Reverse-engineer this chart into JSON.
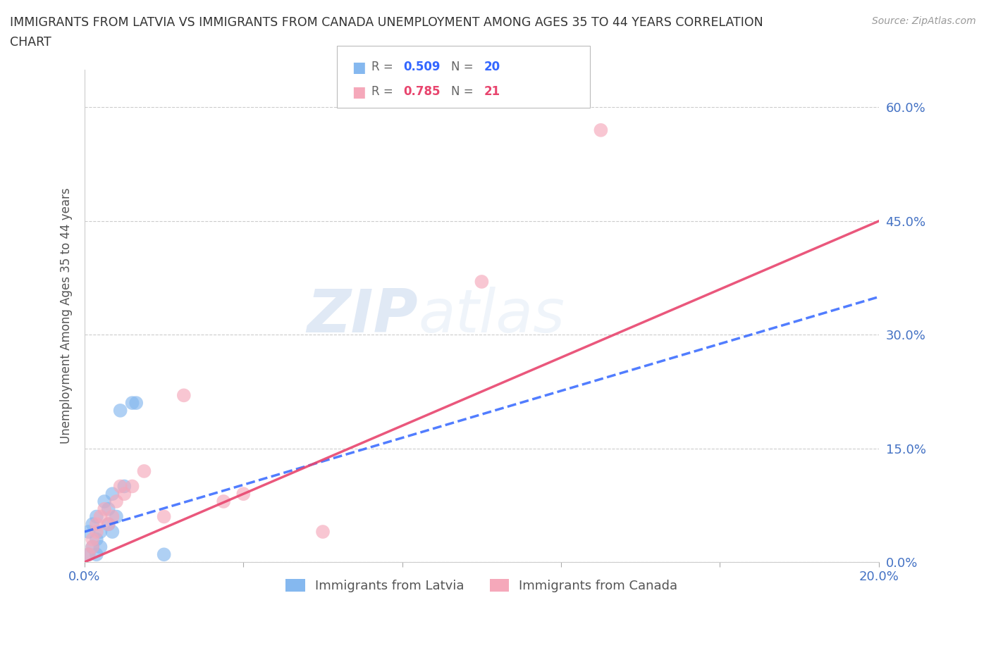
{
  "title": "IMMIGRANTS FROM LATVIA VS IMMIGRANTS FROM CANADA UNEMPLOYMENT AMONG AGES 35 TO 44 YEARS CORRELATION\nCHART",
  "source": "Source: ZipAtlas.com",
  "ylabel": "Unemployment Among Ages 35 to 44 years",
  "xlim": [
    0.0,
    0.2
  ],
  "ylim": [
    0.0,
    0.65
  ],
  "yticks": [
    0.0,
    0.15,
    0.3,
    0.45,
    0.6
  ],
  "ytick_labels": [
    "0.0%",
    "15.0%",
    "30.0%",
    "45.0%",
    "60.0%"
  ],
  "xticks": [
    0.0,
    0.04,
    0.08,
    0.12,
    0.16,
    0.2
  ],
  "xtick_labels": [
    "0.0%",
    "",
    "",
    "",
    "",
    "20.0%"
  ],
  "latvia_x": [
    0.001,
    0.001,
    0.002,
    0.002,
    0.003,
    0.003,
    0.003,
    0.004,
    0.004,
    0.005,
    0.006,
    0.006,
    0.007,
    0.007,
    0.008,
    0.009,
    0.01,
    0.012,
    0.013,
    0.02
  ],
  "latvia_y": [
    0.01,
    0.04,
    0.02,
    0.05,
    0.01,
    0.03,
    0.06,
    0.02,
    0.04,
    0.08,
    0.05,
    0.07,
    0.04,
    0.09,
    0.06,
    0.2,
    0.1,
    0.21,
    0.21,
    0.01
  ],
  "canada_x": [
    0.001,
    0.002,
    0.002,
    0.003,
    0.003,
    0.004,
    0.005,
    0.006,
    0.007,
    0.008,
    0.009,
    0.01,
    0.012,
    0.015,
    0.02,
    0.025,
    0.035,
    0.04,
    0.06,
    0.1,
    0.13
  ],
  "canada_y": [
    0.01,
    0.02,
    0.03,
    0.04,
    0.05,
    0.06,
    0.07,
    0.05,
    0.06,
    0.08,
    0.1,
    0.09,
    0.1,
    0.12,
    0.06,
    0.22,
    0.08,
    0.09,
    0.04,
    0.37,
    0.57
  ],
  "latvia_color": "#85b8ef",
  "canada_color": "#f5a8ba",
  "latvia_line_color": "#3366ff",
  "canada_line_color": "#e8456e",
  "latvia_R": 0.509,
  "latvia_N": 20,
  "canada_R": 0.785,
  "canada_N": 21,
  "watermark_zip": "ZIP",
  "watermark_atlas": "atlas",
  "background_color": "#ffffff",
  "grid_color": "#cccccc",
  "tick_color": "#4472c4",
  "label_color": "#555555"
}
